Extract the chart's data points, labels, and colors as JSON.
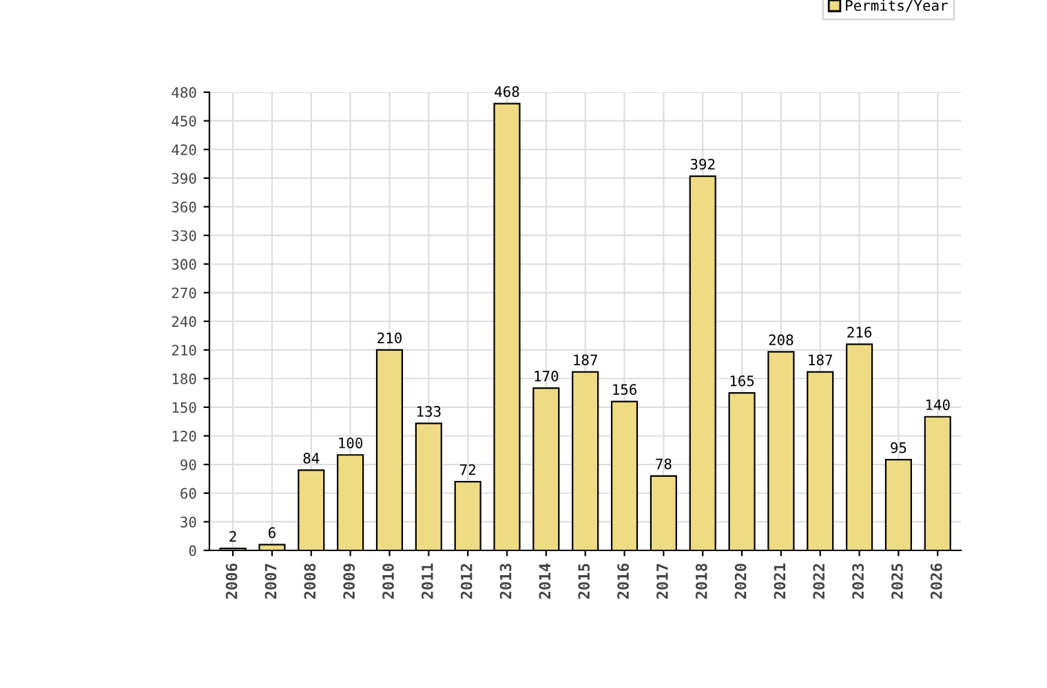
{
  "chart_data": {
    "type": "bar",
    "categories": [
      "2006",
      "2007",
      "2008",
      "2009",
      "2010",
      "2011",
      "2012",
      "2013",
      "2014",
      "2015",
      "2016",
      "2017",
      "2018",
      "2020",
      "2021",
      "2022",
      "2023",
      "2025",
      "2026"
    ],
    "series": [
      {
        "name": "Permits/Year",
        "color": "#eedb84",
        "values": [
          2,
          6,
          84,
          100,
          210,
          133,
          72,
          468,
          170,
          187,
          156,
          78,
          392,
          165,
          208,
          187,
          216,
          95,
          140
        ]
      }
    ],
    "ylim": [
      0,
      480
    ],
    "yticks": [
      0,
      30,
      60,
      90,
      120,
      150,
      180,
      210,
      240,
      270,
      300,
      330,
      360,
      390,
      420,
      450,
      480
    ],
    "grid": true,
    "legend": "top right",
    "data_labels": true
  }
}
